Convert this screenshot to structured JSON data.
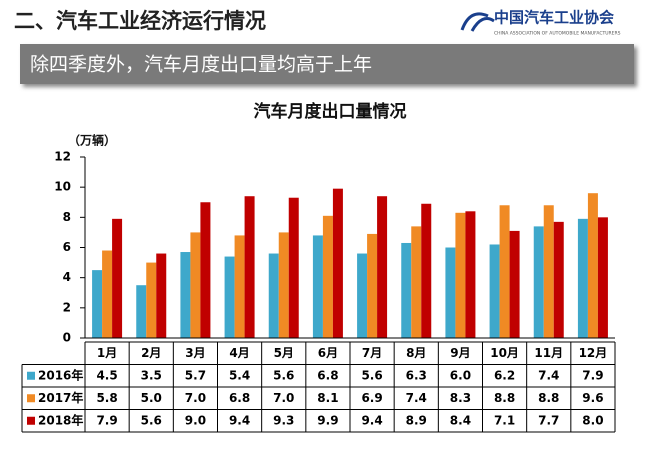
{
  "header": {
    "title": "二、汽车工业经济运行情况",
    "logo": "中国汽车工业协会",
    "logo_subtitle": "CHINA ASSOCIATION OF AUTOMOBILE MANUFACTURERS",
    "banner": "除四季度外，汽车月度出口量均高于上年"
  },
  "chart_data": {
    "type": "bar",
    "title": "汽车月度出口量情况",
    "y_label": "（万辆）",
    "categories": [
      "1月",
      "2月",
      "3月",
      "4月",
      "5月",
      "6月",
      "7月",
      "8月",
      "9月",
      "10月",
      "11月",
      "12月"
    ],
    "series": [
      {
        "name": "2016年",
        "color": "#3ea8cb",
        "values": [
          4.5,
          3.5,
          5.7,
          5.4,
          5.6,
          6.8,
          5.6,
          6.3,
          6.0,
          6.2,
          7.4,
          7.9
        ],
        "value_labels": [
          "4.5",
          "3.5",
          "5.7",
          "5.4",
          "5.6",
          "6.8",
          "5.6",
          "6.3",
          "6.0",
          "6.2",
          "7.4",
          "7.9"
        ]
      },
      {
        "name": "2017年",
        "color": "#f08a24",
        "values": [
          5.8,
          5.0,
          7.0,
          6.8,
          7.0,
          8.1,
          6.9,
          7.4,
          8.3,
          8.8,
          8.8,
          9.6
        ],
        "value_labels": [
          "5.8",
          "5.0",
          "7.0",
          "6.8",
          "7.0",
          "8.1",
          "6.9",
          "7.4",
          "8.3",
          "8.8",
          "8.8",
          "9.6"
        ]
      },
      {
        "name": "2018年",
        "color": "#c00000",
        "values": [
          7.9,
          5.6,
          9.0,
          9.4,
          9.3,
          9.9,
          9.4,
          8.9,
          8.4,
          7.1,
          7.7,
          8.0
        ],
        "value_labels": [
          "7.9",
          "5.6",
          "9.0",
          "9.4",
          "9.3",
          "9.9",
          "9.4",
          "8.9",
          "8.4",
          "7.1",
          "7.7",
          "8.0"
        ]
      }
    ],
    "ylim": [
      0,
      12
    ],
    "yticks": [
      0,
      2,
      4,
      6,
      8,
      10,
      12
    ],
    "grid": false
  }
}
